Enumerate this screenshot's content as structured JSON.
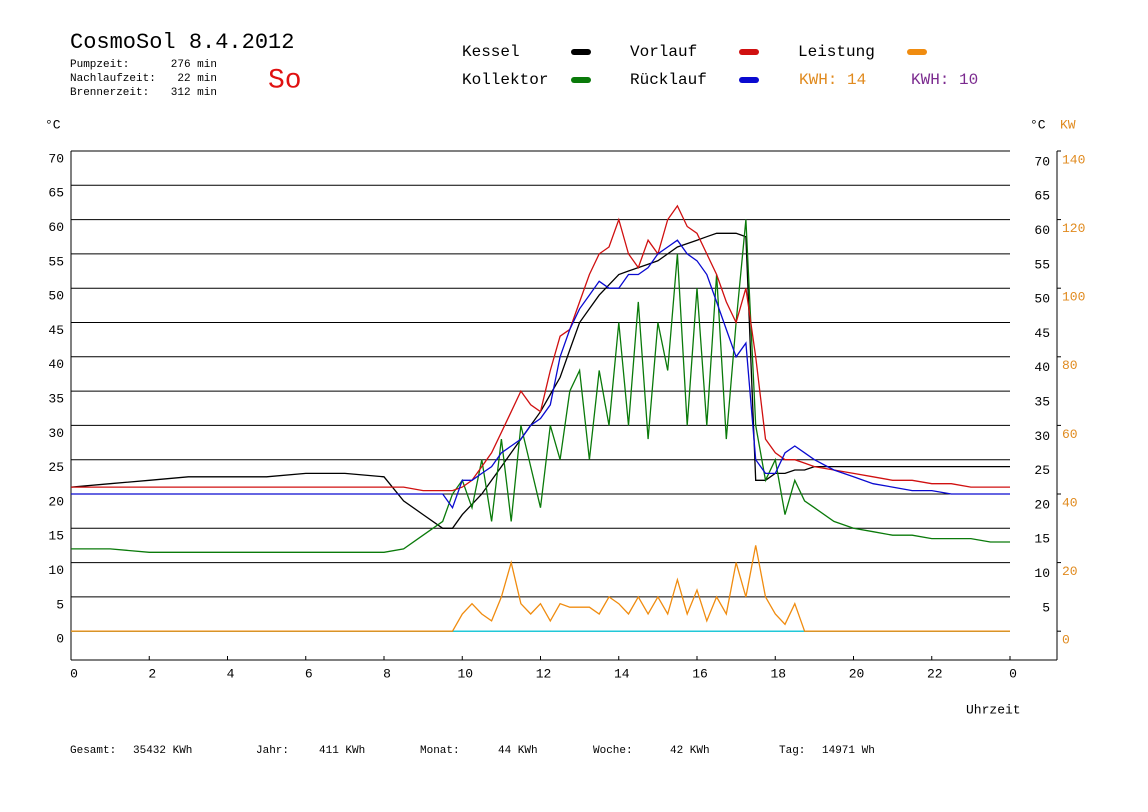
{
  "chart_data": {
    "type": "line",
    "title": "CosmoSol 8.4.2012",
    "info": [
      {
        "label": "Pumpzeit:",
        "value": "276 min"
      },
      {
        "label": "Nachlaufzeit:",
        "value": "22 min"
      },
      {
        "label": "Brennerzeit:",
        "value": "312 min"
      }
    ],
    "day": "So",
    "ylabel": "°C",
    "y2label_c": "°C",
    "y2label": "KW",
    "xlabel": "Uhrzeit",
    "annotations": [
      {
        "text": "KWH: 14",
        "color": "#e08a1e"
      },
      {
        "text": "KWH: 10",
        "color": "#7b2a8f"
      }
    ],
    "x": [
      0,
      1,
      2,
      3,
      4,
      5,
      6,
      7,
      8,
      8.5,
      9,
      9.5,
      9.75,
      10,
      10.25,
      10.5,
      10.75,
      11,
      11.25,
      11.5,
      11.75,
      12,
      12.25,
      12.5,
      12.75,
      13,
      13.25,
      13.5,
      13.75,
      14,
      14.25,
      14.5,
      14.75,
      15,
      15.25,
      15.5,
      15.75,
      16,
      16.25,
      16.5,
      16.75,
      17,
      17.25,
      17.5,
      17.75,
      18,
      18.25,
      18.5,
      18.75,
      19,
      19.5,
      20,
      20.5,
      21,
      21.5,
      22,
      22.5,
      23,
      23.5,
      24
    ],
    "series": [
      {
        "name": "Kessel",
        "color": "#000000",
        "values": [
          21,
          21.5,
          22,
          22.5,
          22.5,
          22.5,
          23,
          23,
          22.5,
          19,
          17,
          15,
          15,
          17,
          18.5,
          20,
          22,
          24,
          26,
          28,
          30,
          32,
          34.5,
          37,
          41,
          45,
          47,
          49,
          50.5,
          52,
          52.5,
          53,
          53.5,
          54,
          55,
          56,
          56.5,
          57,
          57.5,
          58,
          58,
          58,
          57.5,
          22,
          22,
          23,
          23,
          23.5,
          23.5,
          24,
          24,
          24,
          24,
          24,
          24,
          24,
          24,
          24,
          24,
          24
        ]
      },
      {
        "name": "Kollektor",
        "color": "#0a7a0a",
        "values": [
          12,
          12,
          11.5,
          11.5,
          11.5,
          11.5,
          11.5,
          11.5,
          11.5,
          12,
          14,
          16,
          20,
          22,
          18,
          25,
          16,
          28,
          16,
          30,
          24,
          18,
          30,
          25,
          35,
          38,
          25,
          38,
          30,
          45,
          30,
          48,
          28,
          45,
          38,
          55,
          30,
          50,
          30,
          52,
          28,
          45,
          60,
          30,
          22,
          25,
          17,
          22,
          19,
          18,
          16,
          15,
          14.5,
          14,
          14,
          13.5,
          13.5,
          13.5,
          13,
          13
        ]
      },
      {
        "name": "Vorlauf",
        "color": "#d01010",
        "values": [
          21,
          21,
          21,
          21,
          21,
          21,
          21,
          21,
          21,
          21,
          20.5,
          20.5,
          20.5,
          21,
          22,
          24,
          26,
          29,
          32,
          35,
          33,
          32,
          38,
          43,
          44,
          48,
          52,
          55,
          56,
          60,
          55,
          53,
          57,
          55,
          60,
          62,
          59,
          58,
          55,
          52,
          48,
          45,
          50,
          40,
          28,
          26,
          25,
          25,
          24.5,
          24,
          23.5,
          23,
          22.5,
          22,
          22,
          21.5,
          21.5,
          21,
          21,
          21
        ]
      },
      {
        "name": "Rücklauf",
        "color": "#0a0ad0",
        "values": [
          20,
          20,
          20,
          20,
          20,
          20,
          20,
          20,
          20,
          20,
          20,
          20,
          18,
          22,
          22,
          23,
          24,
          26,
          27,
          28,
          30,
          31,
          33,
          40,
          44,
          47,
          49,
          51,
          50,
          50,
          52,
          52,
          53,
          55,
          56,
          57,
          55,
          54,
          52,
          48,
          44,
          40,
          42,
          25,
          23,
          23,
          26,
          27,
          26,
          25,
          23.5,
          22.5,
          21.5,
          21,
          20.5,
          20.5,
          20,
          20,
          20,
          20
        ]
      },
      {
        "name": "Leistung",
        "color": "#f08c10",
        "axis": "y2",
        "values": [
          0,
          0,
          0,
          0,
          0,
          0,
          0,
          0,
          0,
          0,
          0,
          0,
          0,
          5,
          8,
          5,
          3,
          10,
          20,
          8,
          5,
          8,
          3,
          8,
          7,
          7,
          7,
          5,
          10,
          8,
          5,
          10,
          5,
          10,
          5,
          15,
          5,
          12,
          3,
          10,
          5,
          20,
          10,
          25,
          10,
          5,
          2,
          8,
          0,
          0,
          0,
          0,
          0,
          0,
          0,
          0,
          0,
          0,
          0,
          0
        ]
      }
    ],
    "xlim": [
      0,
      24
    ],
    "xticks": [
      0,
      2,
      4,
      6,
      8,
      10,
      12,
      14,
      16,
      18,
      20,
      22,
      {
        "value": 24,
        "label": "0"
      }
    ],
    "ylim": [
      -4.2,
      70
    ],
    "yticks": [
      0,
      5,
      10,
      15,
      20,
      25,
      30,
      35,
      40,
      45,
      50,
      55,
      60,
      65,
      70
    ],
    "y2lim": [
      -8.4,
      140
    ],
    "y2ticks": [
      0,
      20,
      40,
      60,
      80,
      100,
      120,
      140
    ],
    "grid": true,
    "footer": [
      {
        "label": "Gesamt:",
        "value": "35432 KWh"
      },
      {
        "label": "Jahr:",
        "value": "411 KWh"
      },
      {
        "label": "Monat:",
        "value": "44 KWh"
      },
      {
        "label": "Woche:",
        "value": "42 KWh"
      },
      {
        "label": "Tag:",
        "value": "14971 Wh"
      }
    ]
  }
}
